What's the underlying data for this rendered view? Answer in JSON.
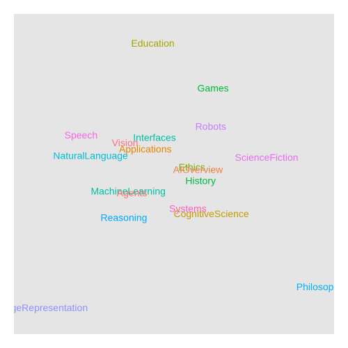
{
  "chart_data": {
    "type": "scatter",
    "title": "",
    "xlabel": "",
    "ylabel": "",
    "grid": false,
    "xlim": [
      0,
      100
    ],
    "ylim": [
      0,
      100
    ],
    "panel_color": "#e5e5e5",
    "points": [
      {
        "label": "Education",
        "x": 42.2,
        "y": 95.0,
        "color": "#a3a500"
      },
      {
        "label": "Games",
        "x": 63.0,
        "y": 79.6,
        "color": "#00ba38"
      },
      {
        "label": "Robots",
        "x": 62.2,
        "y": 66.5,
        "color": "#c77cff"
      },
      {
        "label": "Speech",
        "x": 17.4,
        "y": 63.5,
        "color": "#f564e3"
      },
      {
        "label": "Interfaces",
        "x": 42.8,
        "y": 62.6,
        "color": "#00bfa5"
      },
      {
        "label": "Vision",
        "x": 32.6,
        "y": 60.9,
        "color": "#fc717f"
      },
      {
        "label": "Applications",
        "x": 39.6,
        "y": 58.7,
        "color": "#e58700"
      },
      {
        "label": "NaturalLanguage",
        "x": 20.7,
        "y": 56.5,
        "color": "#00bcd8"
      },
      {
        "label": "ScienceFiction",
        "x": 81.5,
        "y": 55.9,
        "color": "#e76bf3"
      },
      {
        "label": "Ethics",
        "x": 55.7,
        "y": 52.5,
        "color": "#7cae00"
      },
      {
        "label": "AIOverview",
        "x": 57.8,
        "y": 51.7,
        "color": "#ef7f49"
      },
      {
        "label": "History",
        "x": 58.7,
        "y": 47.8,
        "color": "#00ba42"
      },
      {
        "label": "MachineLearning",
        "x": 33.7,
        "y": 44.3,
        "color": "#00bfa5"
      },
      {
        "label": "Agents",
        "x": 35.0,
        "y": 43.7,
        "color": "#f8766d"
      },
      {
        "label": "Systems",
        "x": 54.3,
        "y": 38.3,
        "color": "#ff61c3"
      },
      {
        "label": "CognitiveScience",
        "x": 62.4,
        "y": 36.5,
        "color": "#c49a00"
      },
      {
        "label": "Reasoning",
        "x": 32.2,
        "y": 35.2,
        "color": "#00a9ff"
      },
      {
        "label": "Philosophy",
        "x": 100.0,
        "y": 11.5,
        "color": "#00b0f6"
      },
      {
        "label": "KnowledgeRepresentation",
        "x": 0.0,
        "y": 4.3,
        "color": "#8f91ff"
      }
    ]
  }
}
